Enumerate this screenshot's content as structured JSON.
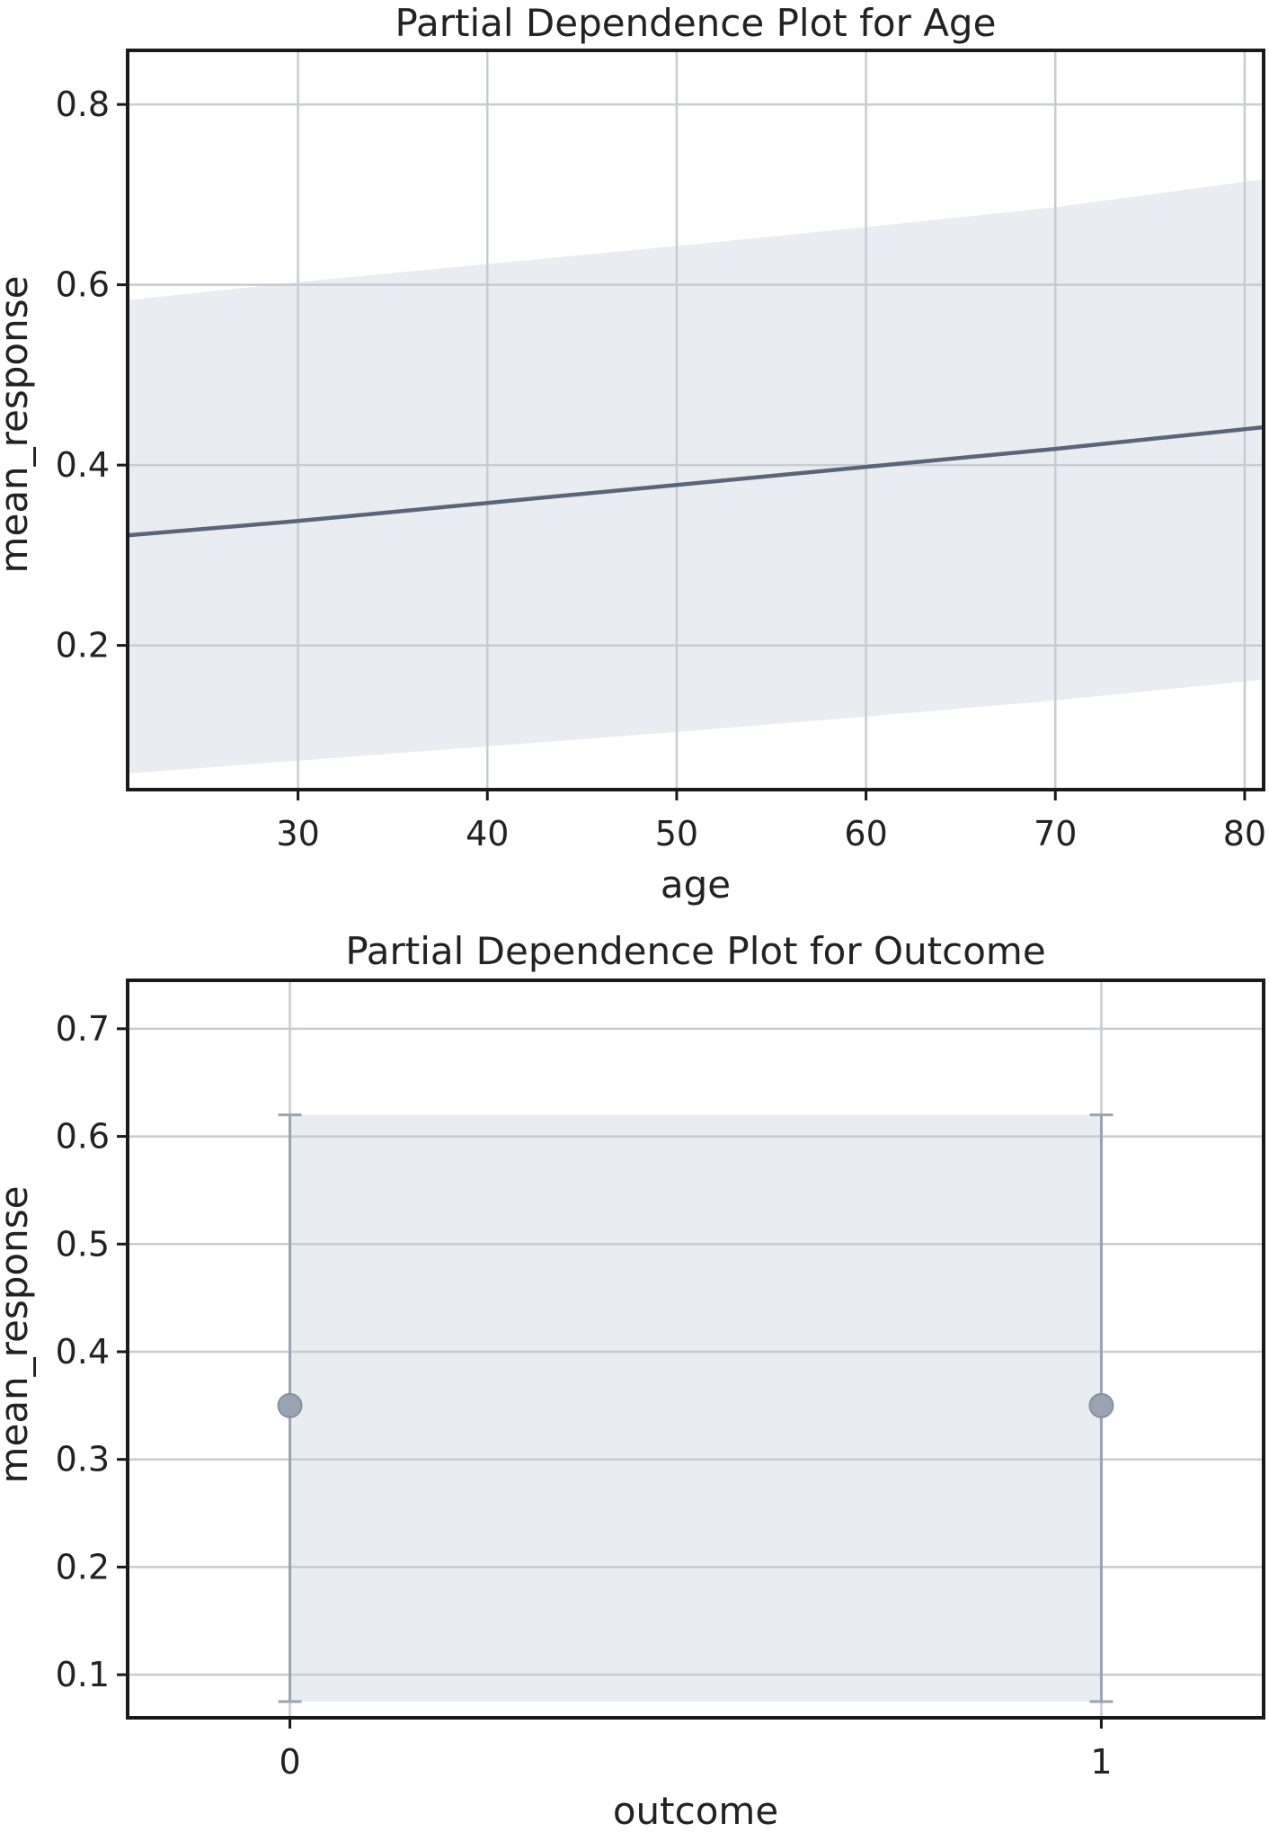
{
  "colors": {
    "line": "#5b6478",
    "band": "#e9ecf1",
    "grid": "#c8cbd1",
    "frame": "#1a1a1a",
    "marker": "#9aa3b2",
    "errorbar": "#9aa3b2"
  },
  "chart_data": [
    {
      "type": "line",
      "title": "Partial Dependence Plot for Age",
      "xlabel": "age",
      "ylabel": "mean_response",
      "xlim": [
        21,
        81
      ],
      "ylim": [
        0.04,
        0.86
      ],
      "xticks": [
        30,
        40,
        50,
        60,
        70,
        80
      ],
      "xtick_labels": [
        "30",
        "40",
        "50",
        "60",
        "70",
        "80"
      ],
      "yticks": [
        0.2,
        0.4,
        0.6,
        0.8
      ],
      "ytick_labels": [
        "0.2",
        "0.4",
        "0.6",
        "0.8"
      ],
      "grid": true,
      "series": [
        {
          "x": [
            21,
            30,
            40,
            50,
            60,
            70,
            81
          ],
          "y": [
            0.322,
            0.338,
            0.358,
            0.378,
            0.398,
            0.418,
            0.442
          ],
          "lower": [
            0.058,
            0.072,
            0.088,
            0.104,
            0.121,
            0.139,
            0.162
          ],
          "upper": [
            0.583,
            0.603,
            0.623,
            0.643,
            0.664,
            0.686,
            0.717
          ]
        }
      ]
    },
    {
      "type": "scatter",
      "title": "Partial Dependence Plot for Outcome",
      "xlabel": "outcome",
      "ylabel": "mean_response",
      "xlim": [
        -0.2,
        1.2
      ],
      "ylim": [
        0.06,
        0.745
      ],
      "xticks": [
        0,
        1
      ],
      "xtick_labels": [
        "0",
        "1"
      ],
      "yticks": [
        0.1,
        0.2,
        0.3,
        0.4,
        0.5,
        0.6,
        0.7
      ],
      "ytick_labels": [
        "0.1",
        "0.2",
        "0.3",
        "0.4",
        "0.5",
        "0.6",
        "0.7"
      ],
      "grid": true,
      "series": [
        {
          "x": [
            0,
            1
          ],
          "y": [
            0.35,
            0.35
          ],
          "lower": [
            0.075,
            0.075
          ],
          "upper": [
            0.62,
            0.62
          ]
        }
      ]
    }
  ]
}
